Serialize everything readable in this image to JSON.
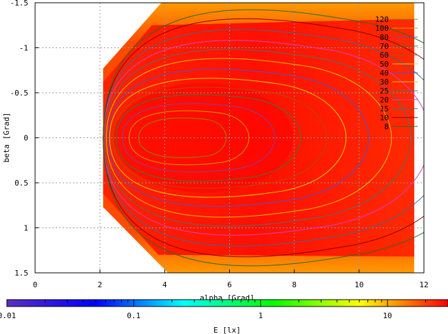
{
  "chart_data": {
    "type": "heatmap",
    "xlabel": "alpha [Grad]",
    "ylabel": "beta [Grad]",
    "xlim": [
      0,
      12
    ],
    "ylim": [
      -1.5,
      1.5
    ],
    "y_axis_direction": "top-to-bottom",
    "x_ticks": [
      "0",
      "2",
      "4",
      "6",
      "8",
      "10",
      "12"
    ],
    "y_ticks": [
      "-1.5",
      "-1",
      "-0.5",
      "0",
      "0.5",
      "1",
      "1.5"
    ],
    "grid": true,
    "legend_position": "top-right",
    "coverage_x_range": [
      2.1,
      11.7
    ],
    "contour_center": {
      "alpha": 4.6,
      "beta": 0
    },
    "contours": [
      {
        "name": "120",
        "color": "#8a8a00",
        "alpha_min": 3.2,
        "alpha_max": 5.9,
        "half_beta": 0.22
      },
      {
        "name": "100",
        "color": "#c0a000",
        "alpha_min": 2.9,
        "alpha_max": 6.6,
        "half_beta": 0.3
      },
      {
        "name": "80",
        "color": "#8a3fa0",
        "alpha_min": 2.7,
        "alpha_max": 7.4,
        "half_beta": 0.38
      },
      {
        "name": "70",
        "color": "#3a7a3a",
        "alpha_min": 2.5,
        "alpha_max": 8.2,
        "half_beta": 0.48
      },
      {
        "name": "60",
        "color": "#b05000",
        "alpha_min": 2.4,
        "alpha_max": 9.0,
        "half_beta": 0.56
      },
      {
        "name": "50",
        "color": "#d8d000",
        "alpha_min": 2.3,
        "alpha_max": 9.6,
        "half_beta": 0.66
      },
      {
        "name": "40",
        "color": "#5050d0",
        "alpha_min": 2.25,
        "alpha_max": 10.3,
        "half_beta": 0.76
      },
      {
        "name": "30",
        "color": "#e0c000",
        "alpha_min": 2.2,
        "alpha_max": 11.0,
        "half_beta": 0.88
      },
      {
        "name": "25",
        "color": "#4d7070",
        "alpha_min": 2.15,
        "alpha_max": 11.6,
        "half_beta": 0.98
      },
      {
        "name": "20",
        "color": "#d040d0",
        "alpha_min": 2.1,
        "alpha_max": 12.2,
        "half_beta": 1.08
      },
      {
        "name": "15",
        "color": "#406890",
        "alpha_min": 2.1,
        "alpha_max": 12.8,
        "half_beta": 1.2
      },
      {
        "name": "10",
        "color": "#8b0000",
        "alpha_min": 2.1,
        "alpha_max": 13.4,
        "half_beta": 1.32
      },
      {
        "name": "8",
        "color": "#207020",
        "alpha_min": 2.1,
        "alpha_max": 14.0,
        "half_beta": 1.42
      }
    ],
    "colorbar": {
      "label": "E [lx]",
      "scale": "log",
      "range": [
        0.01,
        30
      ],
      "ticks": [
        "0.01",
        "0.1",
        "1",
        "10"
      ],
      "colors": [
        "#5a2fc0",
        "#0000ff",
        "#00ffff",
        "#00ff00",
        "#ffff00",
        "#ff0000"
      ]
    }
  }
}
